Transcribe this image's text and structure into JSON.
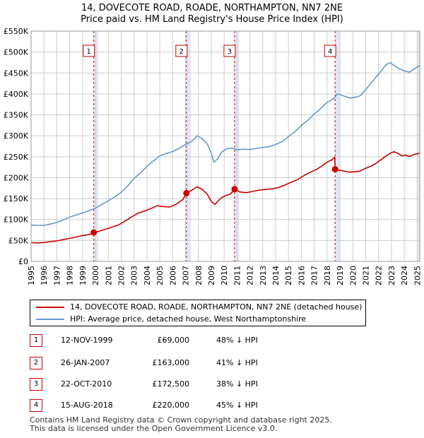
{
  "title_line1": "14, DOVECOTE ROAD, ROADE, NORTHAMPTON, NN7 2NE",
  "title_line2": "Price paid vs. HM Land Registry's House Price Index (HPI)",
  "chart_data": {
    "type": "line",
    "x_range": [
      1995,
      2025.2
    ],
    "ylim": [
      0,
      550000
    ],
    "y_ticks": [
      0,
      50000,
      100000,
      150000,
      200000,
      250000,
      300000,
      350000,
      400000,
      450000,
      500000,
      550000
    ],
    "y_tick_labels": [
      "£0",
      "£50K",
      "£100K",
      "£150K",
      "£200K",
      "£250K",
      "£300K",
      "£350K",
      "£400K",
      "£450K",
      "£500K",
      "£550K"
    ],
    "x_ticks": [
      1995,
      1996,
      1997,
      1998,
      1999,
      2000,
      2001,
      2002,
      2003,
      2004,
      2005,
      2006,
      2007,
      2008,
      2009,
      2010,
      2011,
      2012,
      2013,
      2014,
      2015,
      2016,
      2017,
      2018,
      2019,
      2020,
      2021,
      2022,
      2023,
      2024,
      2025
    ],
    "grid": true,
    "colors": {
      "property": "#cc0000",
      "hpi": "#6699cc",
      "shade": "#dde6f5",
      "grid": "#cccccc"
    },
    "series": [
      {
        "name": "14, DOVECOTE ROAD, ROADE, NORTHAMPTON, NN7 2NE (detached house)",
        "color": "#cc0000",
        "points": [
          [
            1995.0,
            45000
          ],
          [
            1995.5,
            44000
          ],
          [
            1996.0,
            45000
          ],
          [
            1996.5,
            47000
          ],
          [
            1997.0,
            49000
          ],
          [
            1997.5,
            52000
          ],
          [
            1998.0,
            55000
          ],
          [
            1998.5,
            58000
          ],
          [
            1999.0,
            62000
          ],
          [
            1999.5,
            64000
          ],
          [
            1999.87,
            69000
          ],
          [
            2000.3,
            72000
          ],
          [
            2000.8,
            77000
          ],
          [
            2001.3,
            82000
          ],
          [
            2001.8,
            87000
          ],
          [
            2002.3,
            96000
          ],
          [
            2002.8,
            106000
          ],
          [
            2003.3,
            115000
          ],
          [
            2003.8,
            120000
          ],
          [
            2004.3,
            126000
          ],
          [
            2004.8,
            133000
          ],
          [
            2005.3,
            131000
          ],
          [
            2005.8,
            130000
          ],
          [
            2006.3,
            137000
          ],
          [
            2006.8,
            148000
          ],
          [
            2007.07,
            163000
          ],
          [
            2007.5,
            170000
          ],
          [
            2007.9,
            178000
          ],
          [
            2008.3,
            172000
          ],
          [
            2008.7,
            160000
          ],
          [
            2009.0,
            143000
          ],
          [
            2009.3,
            136000
          ],
          [
            2009.7,
            150000
          ],
          [
            2010.1,
            157000
          ],
          [
            2010.5,
            161000
          ],
          [
            2010.81,
            172500
          ],
          [
            2011.2,
            166000
          ],
          [
            2011.7,
            164000
          ],
          [
            2012.2,
            167000
          ],
          [
            2012.7,
            170000
          ],
          [
            2013.2,
            172000
          ],
          [
            2013.7,
            173000
          ],
          [
            2014.2,
            176000
          ],
          [
            2014.7,
            182000
          ],
          [
            2015.2,
            189000
          ],
          [
            2015.7,
            195000
          ],
          [
            2016.2,
            205000
          ],
          [
            2016.7,
            213000
          ],
          [
            2017.2,
            220000
          ],
          [
            2017.7,
            230000
          ],
          [
            2018.0,
            237000
          ],
          [
            2018.4,
            243000
          ],
          [
            2018.6,
            249000
          ],
          [
            2018.62,
            220000
          ],
          [
            2018.9,
            218000
          ],
          [
            2019.3,
            216000
          ],
          [
            2019.7,
            213000
          ],
          [
            2020.1,
            214000
          ],
          [
            2020.5,
            215000
          ],
          [
            2020.9,
            221000
          ],
          [
            2021.3,
            226000
          ],
          [
            2021.7,
            232000
          ],
          [
            2022.1,
            241000
          ],
          [
            2022.5,
            250000
          ],
          [
            2022.9,
            258000
          ],
          [
            2023.2,
            262000
          ],
          [
            2023.5,
            258000
          ],
          [
            2023.8,
            252000
          ],
          [
            2024.1,
            254000
          ],
          [
            2024.4,
            250000
          ],
          [
            2024.7,
            255000
          ],
          [
            2025.0,
            257000
          ],
          [
            2025.2,
            258000
          ]
        ]
      },
      {
        "name": "HPI: Average price, detached house, West Northamptonshire",
        "color": "#6699cc",
        "points": [
          [
            1995.0,
            87000
          ],
          [
            1995.5,
            86000
          ],
          [
            1996.0,
            86000
          ],
          [
            1996.5,
            89000
          ],
          [
            1997.0,
            93000
          ],
          [
            1997.5,
            99000
          ],
          [
            1998.0,
            106000
          ],
          [
            1998.5,
            111000
          ],
          [
            1999.0,
            116000
          ],
          [
            1999.5,
            121000
          ],
          [
            2000.0,
            127000
          ],
          [
            2000.5,
            136000
          ],
          [
            2001.0,
            145000
          ],
          [
            2001.5,
            154000
          ],
          [
            2002.0,
            165000
          ],
          [
            2002.5,
            180000
          ],
          [
            2003.0,
            198000
          ],
          [
            2003.5,
            211000
          ],
          [
            2004.0,
            227000
          ],
          [
            2004.5,
            240000
          ],
          [
            2005.0,
            252000
          ],
          [
            2005.5,
            258000
          ],
          [
            2006.0,
            262000
          ],
          [
            2006.5,
            270000
          ],
          [
            2007.0,
            279000
          ],
          [
            2007.5,
            287000
          ],
          [
            2007.9,
            300000
          ],
          [
            2008.3,
            293000
          ],
          [
            2008.7,
            280000
          ],
          [
            2009.0,
            258000
          ],
          [
            2009.2,
            237000
          ],
          [
            2009.5,
            245000
          ],
          [
            2009.8,
            261000
          ],
          [
            2010.2,
            269000
          ],
          [
            2010.6,
            271000
          ],
          [
            2011.0,
            266000
          ],
          [
            2011.5,
            268000
          ],
          [
            2012.0,
            267000
          ],
          [
            2012.5,
            270000
          ],
          [
            2013.0,
            272000
          ],
          [
            2013.5,
            274000
          ],
          [
            2014.0,
            279000
          ],
          [
            2014.5,
            286000
          ],
          [
            2015.0,
            298000
          ],
          [
            2015.5,
            310000
          ],
          [
            2016.0,
            325000
          ],
          [
            2016.5,
            337000
          ],
          [
            2017.0,
            352000
          ],
          [
            2017.5,
            365000
          ],
          [
            2018.0,
            380000
          ],
          [
            2018.5,
            388000
          ],
          [
            2018.8,
            400000
          ],
          [
            2019.3,
            395000
          ],
          [
            2019.8,
            390000
          ],
          [
            2020.2,
            392000
          ],
          [
            2020.6,
            396000
          ],
          [
            2021.0,
            410000
          ],
          [
            2021.4,
            425000
          ],
          [
            2021.8,
            440000
          ],
          [
            2022.2,
            455000
          ],
          [
            2022.6,
            470000
          ],
          [
            2022.9,
            475000
          ],
          [
            2023.2,
            468000
          ],
          [
            2023.6,
            460000
          ],
          [
            2024.0,
            455000
          ],
          [
            2024.4,
            452000
          ],
          [
            2024.8,
            460000
          ],
          [
            2025.2,
            468000
          ]
        ]
      }
    ],
    "sales": [
      {
        "label": "1",
        "x": 1999.87,
        "y": 69000
      },
      {
        "label": "2",
        "x": 2007.07,
        "y": 163000
      },
      {
        "label": "3",
        "x": 2010.81,
        "y": 172500
      },
      {
        "label": "4",
        "x": 2018.62,
        "y": 220000
      }
    ],
    "shaded_year_end": 2025.0
  },
  "legend": {
    "property_label": "14, DOVECOTE ROAD, ROADE, NORTHAMPTON, NN7 2NE (detached house)",
    "hpi_label": "HPI: Average price, detached house, West Northamptonshire"
  },
  "transactions": [
    {
      "num": "1",
      "date": "12-NOV-1999",
      "price": "£69,000",
      "hpi": "48% ↓ HPI"
    },
    {
      "num": "2",
      "date": "26-JAN-2007",
      "price": "£163,000",
      "hpi": "41% ↓ HPI"
    },
    {
      "num": "3",
      "date": "22-OCT-2010",
      "price": "£172,500",
      "hpi": "38% ↓ HPI"
    },
    {
      "num": "4",
      "date": "15-AUG-2018",
      "price": "£220,000",
      "hpi": "45% ↓ HPI"
    }
  ],
  "footer_line1": "Contains HM Land Registry data © Crown copyright and database right 2025.",
  "footer_line2": "This data is licensed under the Open Government Licence v3.0."
}
